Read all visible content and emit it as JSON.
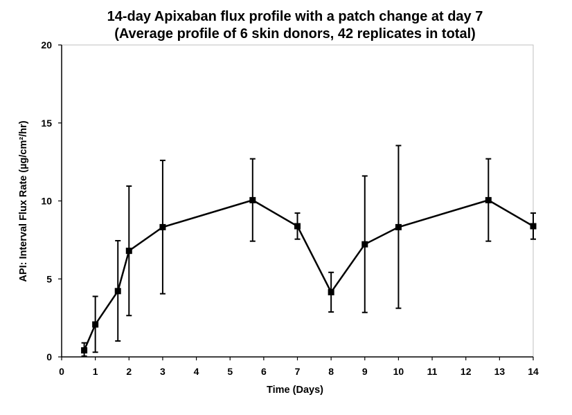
{
  "chart_data": {
    "type": "line",
    "title_lines": [
      "14-day Apixaban flux profile with a patch change at day 7",
      "(Average profile of 6 skin donors, 42 replicates in total)"
    ],
    "xlabel": "Time (Days)",
    "ylabel": "API: Interval Flux Rate (µg/cm²/hr)",
    "xlim": [
      0,
      14
    ],
    "ylim": [
      0,
      20
    ],
    "x_ticks": [
      0,
      1,
      2,
      3,
      4,
      5,
      6,
      7,
      8,
      9,
      10,
      11,
      12,
      13,
      14
    ],
    "y_ticks": [
      0,
      5,
      10,
      15,
      20
    ],
    "grid": false,
    "marker": "square",
    "series": [
      {
        "color": "#000000",
        "points": [
          {
            "x": 0.67,
            "y": 0.42,
            "err_low": 0.05,
            "err_high": 0.9
          },
          {
            "x": 1.0,
            "y": 2.08,
            "err_low": 0.3,
            "err_high": 3.88
          },
          {
            "x": 1.67,
            "y": 4.22,
            "err_low": 1.02,
            "err_high": 7.45
          },
          {
            "x": 2.0,
            "y": 6.8,
            "err_low": 2.65,
            "err_high": 10.95
          },
          {
            "x": 3.0,
            "y": 8.32,
            "err_low": 4.05,
            "err_high": 12.6
          },
          {
            "x": 5.67,
            "y": 10.05,
            "err_low": 7.42,
            "err_high": 12.7
          },
          {
            "x": 7.0,
            "y": 8.38,
            "err_low": 7.55,
            "err_high": 9.22
          },
          {
            "x": 8.0,
            "y": 4.15,
            "err_low": 2.88,
            "err_high": 5.42
          },
          {
            "x": 9.0,
            "y": 7.22,
            "err_low": 2.85,
            "err_high": 11.6
          },
          {
            "x": 10.0,
            "y": 8.32,
            "err_low": 3.12,
            "err_high": 13.55
          },
          {
            "x": 12.67,
            "y": 10.05,
            "err_low": 7.42,
            "err_high": 12.7
          },
          {
            "x": 14.0,
            "y": 8.38,
            "err_low": 7.55,
            "err_high": 9.22
          }
        ]
      }
    ]
  }
}
